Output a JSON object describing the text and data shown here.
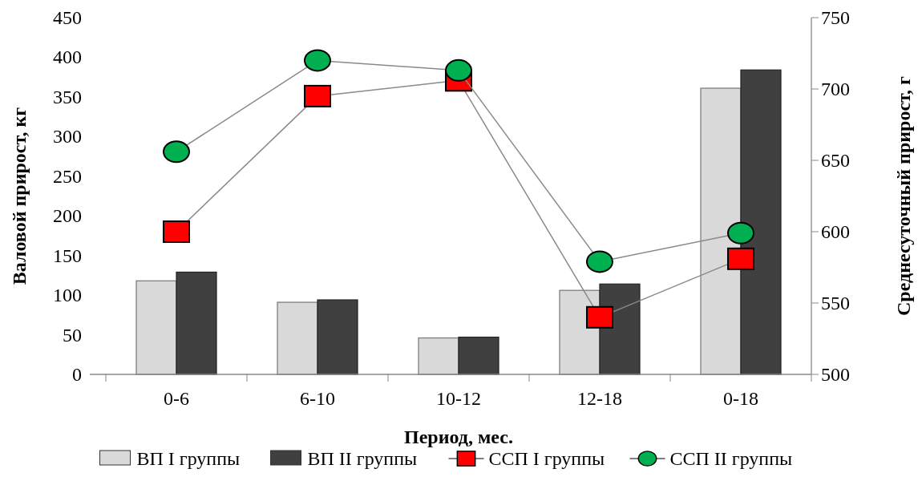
{
  "chart_data": {
    "type": "bar",
    "xlabel": "Период, мес.",
    "ylabel": "Валовой прирост, кг",
    "y2label": "Среднесуточный прирост, г",
    "categories": [
      "0-6",
      "6-10",
      "10-12",
      "12-18",
      "0-18"
    ],
    "ylim": [
      0,
      450
    ],
    "yticks": [
      0,
      50,
      100,
      150,
      200,
      250,
      300,
      350,
      400,
      450
    ],
    "y2lim": [
      500,
      750
    ],
    "y2ticks": [
      500,
      550,
      600,
      650,
      700,
      750
    ],
    "legend": "bottom",
    "grid": false,
    "series": [
      {
        "name": "ВП I группы",
        "color": "#d9d9d9",
        "values": [
          118,
          91,
          46,
          106,
          361
        ]
      },
      {
        "name": "ВП II группы",
        "color": "#404040",
        "values": [
          129,
          94,
          47,
          114,
          384
        ]
      },
      {
        "name": "ССП I группы",
        "type": "line",
        "axis": "y2",
        "marker": "square",
        "color": "#ff0000",
        "values": [
          600,
          695,
          706,
          540,
          581
        ]
      },
      {
        "name": "ССП II группы",
        "type": "line",
        "axis": "y2",
        "marker": "circle",
        "color": "#00b050",
        "values": [
          656,
          720,
          713,
          579,
          599
        ]
      }
    ]
  }
}
